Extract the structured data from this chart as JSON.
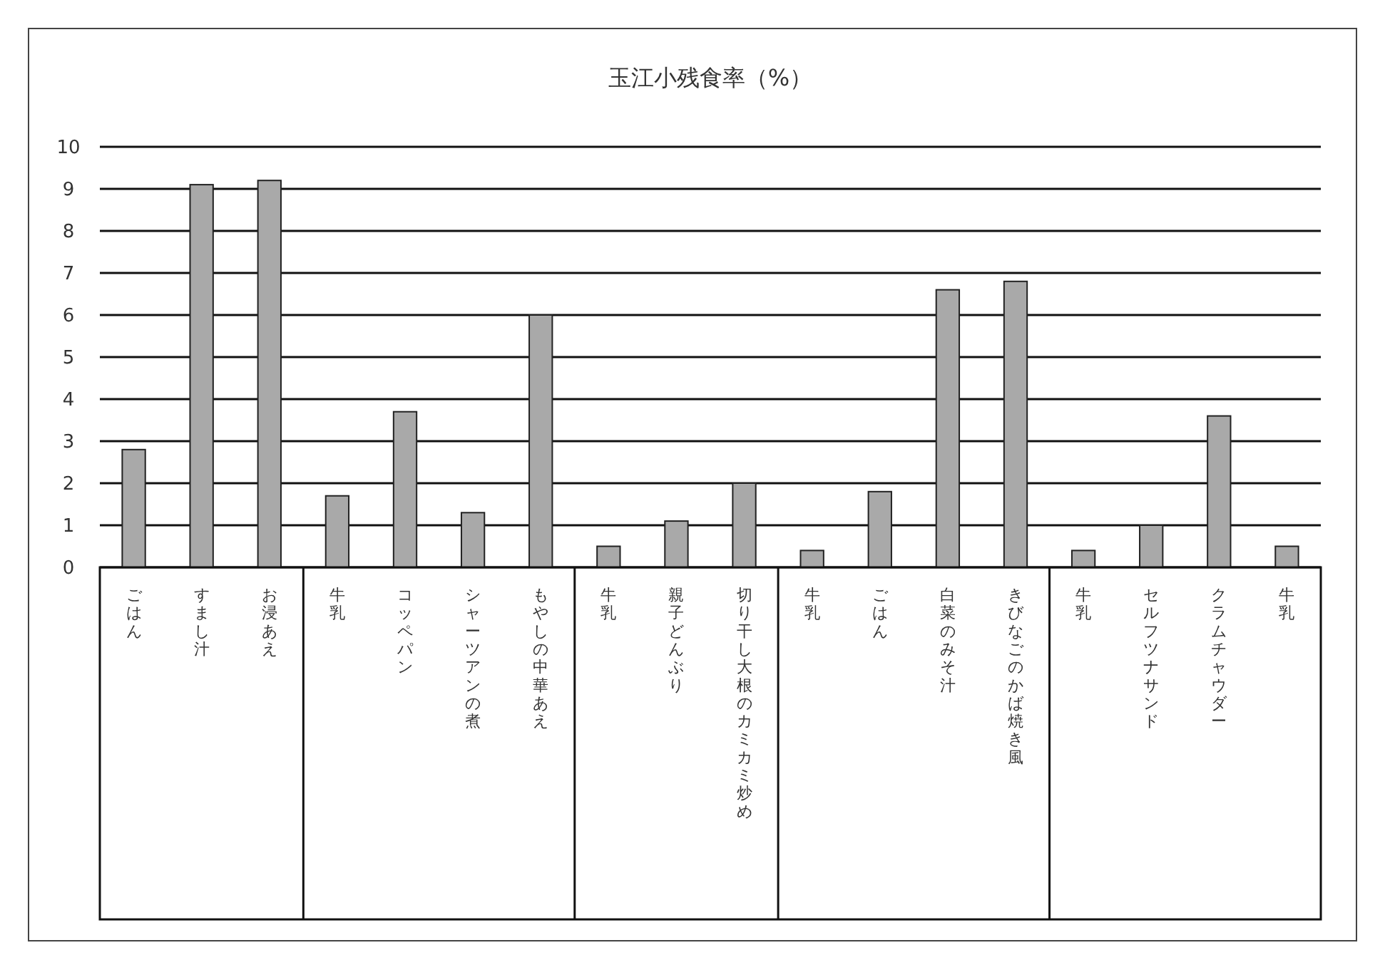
{
  "chart_data": {
    "type": "bar",
    "title": "玉江小残食率（%）",
    "categories": [
      "ごはん",
      "すまし汁",
      "お浸あえ",
      "牛乳",
      "コッペパン",
      "シャーツアンの煮",
      "もやしの中華あえ",
      "牛乳",
      "親子どんぶり",
      "切り干し大根のカミカミ炒め",
      "牛乳",
      "ごはん",
      "白菜のみそ汁",
      "きびなごのかば焼き風",
      "牛乳",
      "セルフツナサンド",
      "クラムチャウダー",
      "牛乳"
    ],
    "values": [
      2.8,
      9.1,
      9.2,
      1.7,
      3.7,
      1.3,
      6.0,
      0.5,
      1.1,
      2.0,
      0.4,
      1.8,
      6.6,
      6.8,
      0.4,
      1.0,
      3.6,
      0.5
    ],
    "color": "#a9a9a9",
    "ylim": [
      0,
      10
    ],
    "yticks": [
      0,
      1,
      2,
      3,
      4,
      5,
      6,
      7,
      8,
      9,
      10
    ],
    "grid": "y"
  }
}
